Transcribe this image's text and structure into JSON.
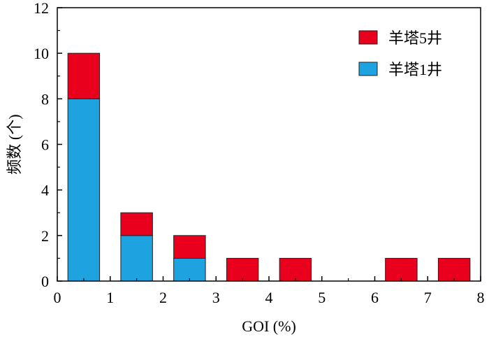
{
  "chart_data": {
    "type": "bar",
    "stacked": true,
    "xlabel": "GOI (%)",
    "ylabel": "频数 (个)",
    "xlim": [
      0,
      8
    ],
    "ylim": [
      0,
      12
    ],
    "x_ticks": [
      "0",
      "1",
      "2",
      "3",
      "4",
      "5",
      "6",
      "7",
      "8"
    ],
    "y_ticks": [
      "0",
      "2",
      "4",
      "6",
      "8",
      "10",
      "12"
    ],
    "bin_edges": [
      [
        0.2,
        0.8
      ],
      [
        1.2,
        1.8
      ],
      [
        2.2,
        2.8
      ],
      [
        3.2,
        3.8
      ],
      [
        4.2,
        4.8
      ],
      [
        6.2,
        6.8
      ],
      [
        7.2,
        7.8
      ]
    ],
    "series": [
      {
        "name": "羊塔1井",
        "color": "#1ea2e0",
        "values": [
          8,
          2,
          1,
          0,
          0,
          0,
          0
        ]
      },
      {
        "name": "羊塔5井",
        "color": "#e8001c",
        "values": [
          2,
          1,
          1,
          1,
          1,
          1,
          1
        ]
      }
    ],
    "legend_order": [
      "羊塔5井",
      "羊塔1井"
    ],
    "legend_position": "top-right",
    "grid": false
  }
}
